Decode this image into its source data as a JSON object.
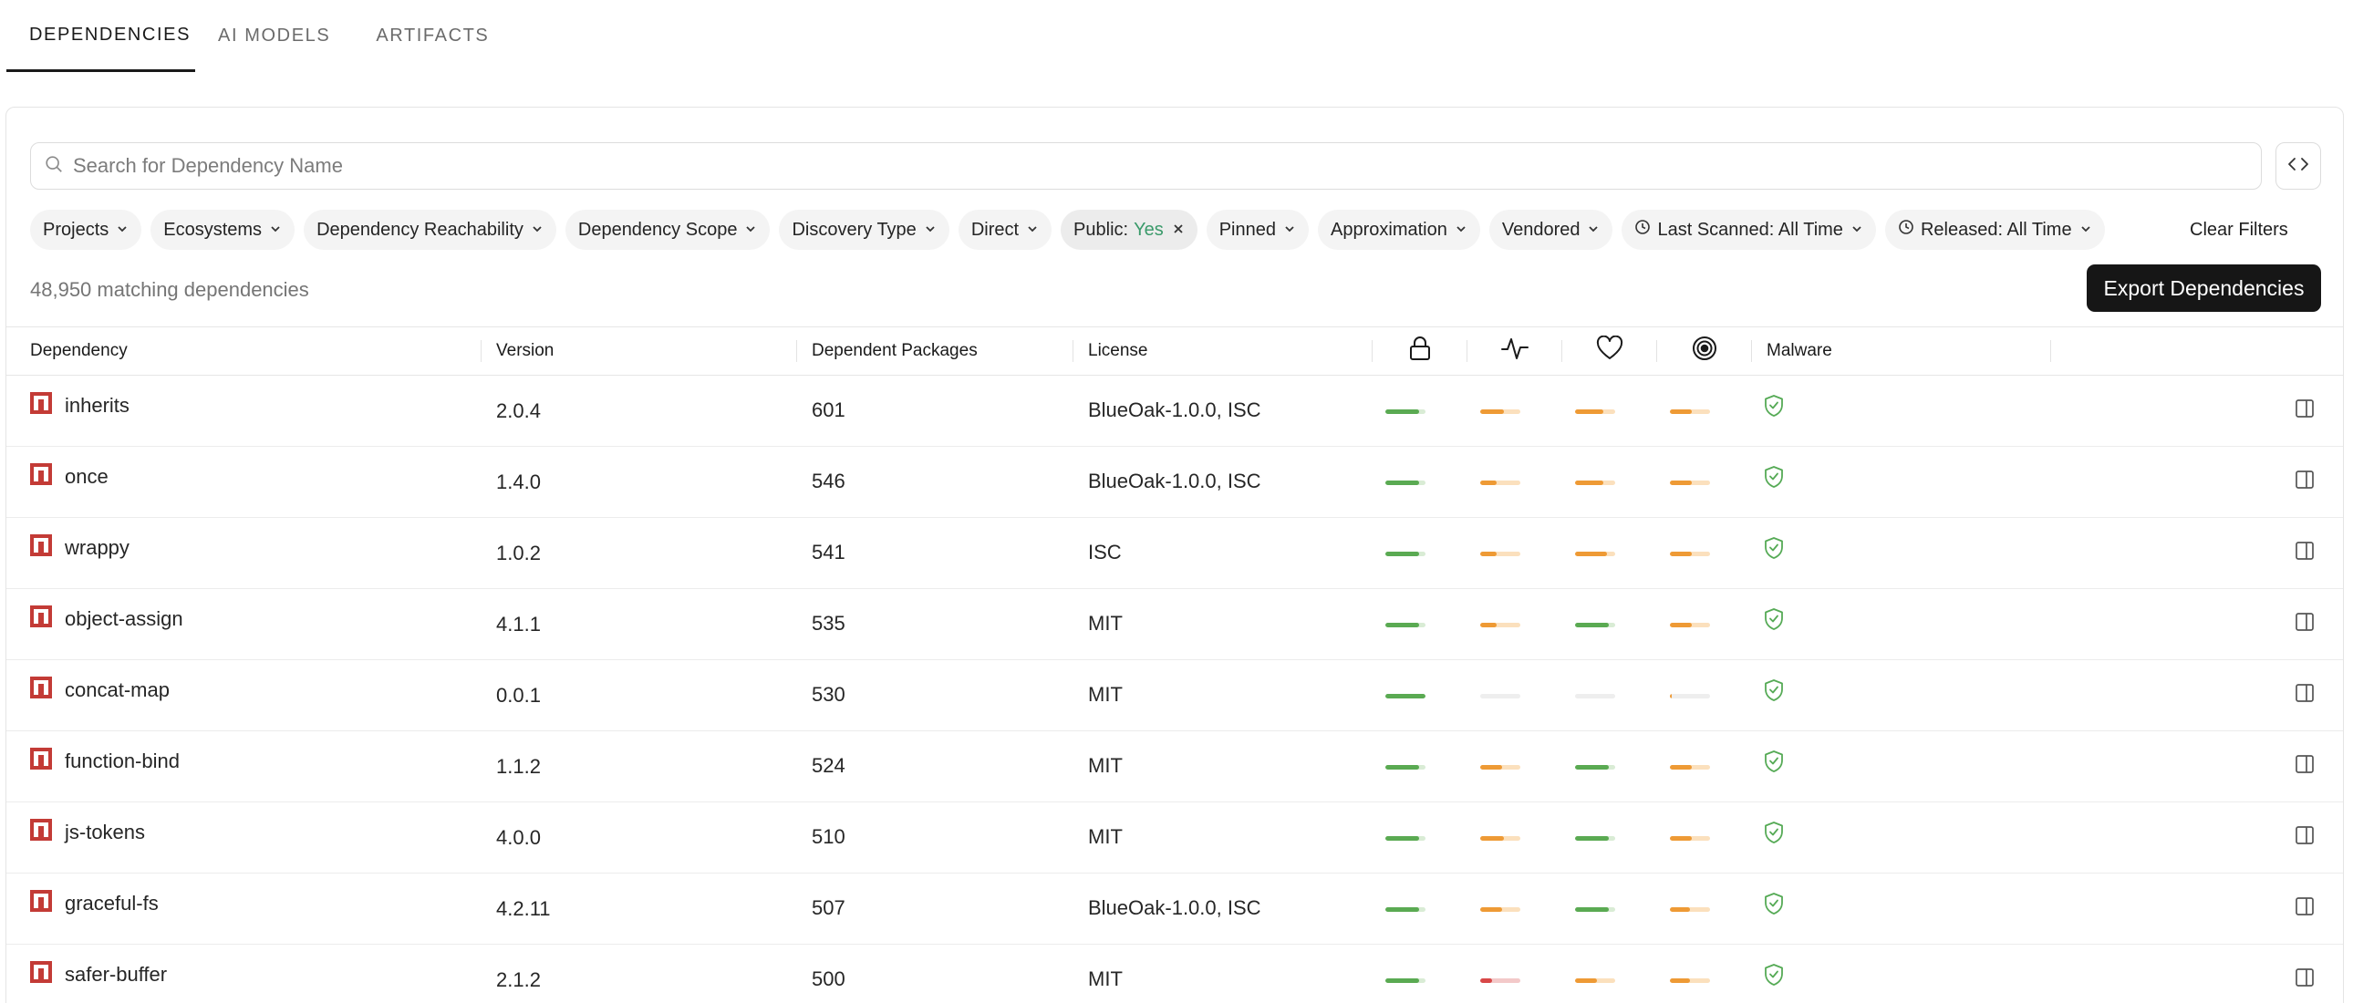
{
  "tabs": [
    {
      "label": "DEPENDENCIES",
      "active": true
    },
    {
      "label": "AI MODELS",
      "active": false
    },
    {
      "label": "ARTIFACTS",
      "active": false
    }
  ],
  "search": {
    "placeholder": "Search for Dependency Name"
  },
  "filters": {
    "projects": "Projects",
    "ecosystems": "Ecosystems",
    "reachability": "Dependency Reachability",
    "scope": "Dependency Scope",
    "discovery": "Discovery Type",
    "direct": "Direct",
    "public_label": "Public:",
    "public_value": "Yes",
    "pinned": "Pinned",
    "approximation": "Approximation",
    "vendored": "Vendored",
    "last_scanned": "Last Scanned: All Time",
    "released": "Released: All Time",
    "clear": "Clear Filters"
  },
  "summary": {
    "count_text": "48,950 matching dependencies",
    "export_label": "Export Dependencies"
  },
  "columns": {
    "dependency": "Dependency",
    "version": "Version",
    "dependent_packages": "Dependent Packages",
    "license": "License",
    "security_icon": "lock-icon",
    "activity_icon": "activity-icon",
    "popularity_icon": "heart-icon",
    "code_quality_icon": "target-icon",
    "malware": "Malware"
  },
  "colors": {
    "green": "#5aaa52",
    "orange": "#ee9a35",
    "red": "#d84848",
    "npm_red": "#c33b36",
    "shield_green": "#55aa55"
  },
  "rows": [
    {
      "name": "inherits",
      "version": "2.0.4",
      "dependents": "601",
      "license": "BlueOak-1.0.0, ISC",
      "scores": [
        {
          "level": 0.85,
          "color": "green"
        },
        {
          "level": 0.6,
          "color": "orange"
        },
        {
          "level": 0.7,
          "color": "orange"
        },
        {
          "level": 0.55,
          "color": "orange"
        }
      ]
    },
    {
      "name": "once",
      "version": "1.4.0",
      "dependents": "546",
      "license": "BlueOak-1.0.0, ISC",
      "scores": [
        {
          "level": 0.85,
          "color": "green"
        },
        {
          "level": 0.4,
          "color": "orange"
        },
        {
          "level": 0.7,
          "color": "orange"
        },
        {
          "level": 0.55,
          "color": "orange"
        }
      ]
    },
    {
      "name": "wrappy",
      "version": "1.0.2",
      "dependents": "541",
      "license": "ISC",
      "scores": [
        {
          "level": 0.85,
          "color": "green"
        },
        {
          "level": 0.4,
          "color": "orange"
        },
        {
          "level": 0.8,
          "color": "orange"
        },
        {
          "level": 0.55,
          "color": "orange"
        }
      ]
    },
    {
      "name": "object-assign",
      "version": "4.1.1",
      "dependents": "535",
      "license": "MIT",
      "scores": [
        {
          "level": 0.85,
          "color": "green"
        },
        {
          "level": 0.4,
          "color": "orange"
        },
        {
          "level": 0.85,
          "color": "green"
        },
        {
          "level": 0.55,
          "color": "orange"
        }
      ]
    },
    {
      "name": "concat-map",
      "version": "0.0.1",
      "dependents": "530",
      "license": "MIT",
      "scores": [
        {
          "level": 1.0,
          "color": "green"
        },
        {
          "level": 0.0,
          "color": "orange"
        },
        {
          "level": 0.0,
          "color": "orange"
        },
        {
          "level": 0.05,
          "color": "orange"
        }
      ]
    },
    {
      "name": "function-bind",
      "version": "1.1.2",
      "dependents": "524",
      "license": "MIT",
      "scores": [
        {
          "level": 0.85,
          "color": "green"
        },
        {
          "level": 0.55,
          "color": "orange"
        },
        {
          "level": 0.85,
          "color": "green"
        },
        {
          "level": 0.55,
          "color": "orange"
        }
      ]
    },
    {
      "name": "js-tokens",
      "version": "4.0.0",
      "dependents": "510",
      "license": "MIT",
      "scores": [
        {
          "level": 0.85,
          "color": "green"
        },
        {
          "level": 0.6,
          "color": "orange"
        },
        {
          "level": 0.85,
          "color": "green"
        },
        {
          "level": 0.55,
          "color": "orange"
        }
      ]
    },
    {
      "name": "graceful-fs",
      "version": "4.2.11",
      "dependents": "507",
      "license": "BlueOak-1.0.0, ISC",
      "scores": [
        {
          "level": 0.85,
          "color": "green"
        },
        {
          "level": 0.55,
          "color": "orange"
        },
        {
          "level": 0.85,
          "color": "green"
        },
        {
          "level": 0.5,
          "color": "orange"
        }
      ]
    },
    {
      "name": "safer-buffer",
      "version": "2.1.2",
      "dependents": "500",
      "license": "MIT",
      "scores": [
        {
          "level": 0.85,
          "color": "green"
        },
        {
          "level": 0.3,
          "color": "red"
        },
        {
          "level": 0.55,
          "color": "orange"
        },
        {
          "level": 0.5,
          "color": "orange"
        }
      ]
    }
  ]
}
